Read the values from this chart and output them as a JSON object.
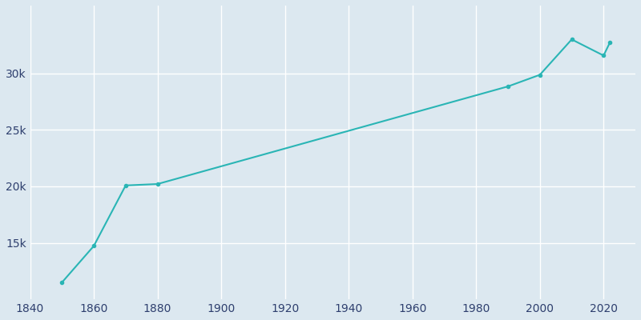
{
  "years": [
    1850,
    1860,
    1870,
    1880,
    1990,
    2000,
    2010,
    2020,
    2022
  ],
  "population": [
    11500,
    14726,
    20081,
    20207,
    28844,
    29871,
    33002,
    31577,
    32736
  ],
  "line_color": "#2ab5b5",
  "marker_color": "#2ab5b5",
  "bg_color": "#dce8f0",
  "grid_color": "#ffffff",
  "text_color": "#2e3f6e",
  "xlim": [
    1840,
    2030
  ],
  "ylim": [
    10000,
    36000
  ],
  "xticks": [
    1840,
    1860,
    1880,
    1900,
    1920,
    1940,
    1960,
    1980,
    2000,
    2020
  ],
  "yticks": [
    15000,
    20000,
    25000,
    30000
  ],
  "ytick_labels": [
    "15k",
    "20k",
    "25k",
    "30k"
  ]
}
